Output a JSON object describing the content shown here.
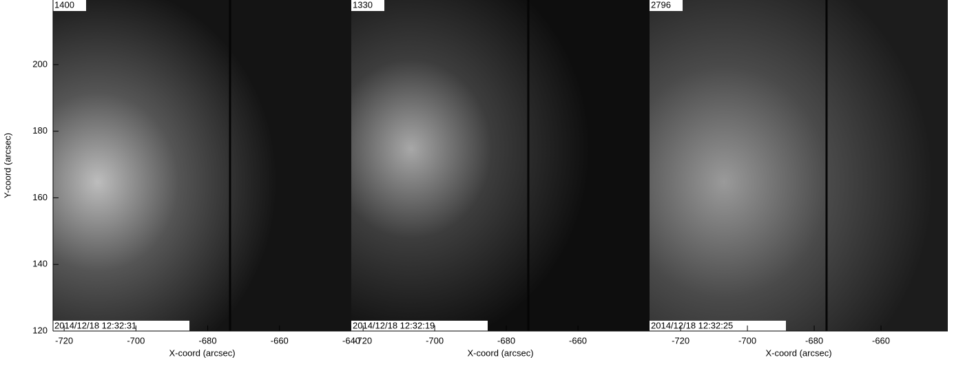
{
  "chart_data": [
    {
      "type": "image",
      "label": "1400",
      "timestamp": "2014/12/18 12:32:31",
      "x_label": "X-coord (arcsec)",
      "y_label": "Y-coord (arcsec)",
      "xlim": [
        -723.1,
        -640
      ],
      "ylim": [
        120,
        219.4
      ],
      "xticks": [
        -720,
        -700,
        -680,
        -660,
        -640
      ],
      "yticks": [
        120,
        140,
        160,
        180,
        200
      ]
    },
    {
      "type": "image",
      "label": "1330",
      "timestamp": "2014/12/18 12:32:19",
      "x_label": "X-coord (arcsec)",
      "xlim": [
        -723.3,
        -640
      ],
      "ylim": [
        120,
        219.4
      ],
      "xticks": [
        -720,
        -700,
        -680,
        -660
      ]
    },
    {
      "type": "image",
      "label": "2796",
      "timestamp": "2014/12/18 12:32:25",
      "x_label": "X-coord (arcsec)",
      "xlim": [
        -729.3,
        -640
      ],
      "ylim": [
        120,
        219.4
      ],
      "xticks": [
        -720,
        -700,
        -680,
        -660
      ]
    }
  ]
}
